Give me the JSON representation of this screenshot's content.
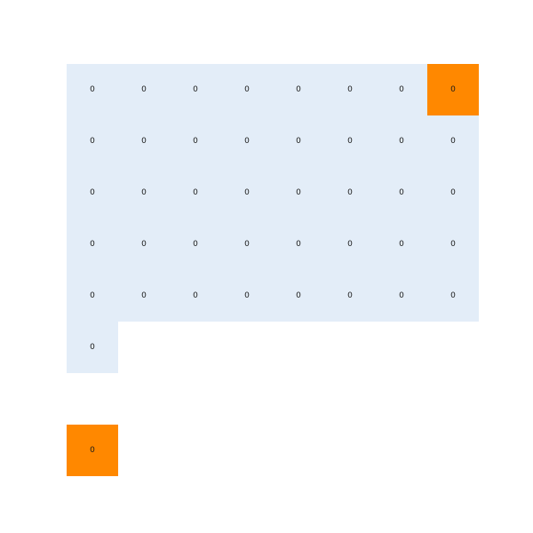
{
  "board": {
    "colors": {
      "revealed": "#e3edf8",
      "highlight": "#ff8800",
      "background": "#ffffff",
      "text": "#1a1a1a"
    },
    "cells": [
      {
        "row": 0,
        "col": 0,
        "value": "0",
        "state": "revealed"
      },
      {
        "row": 0,
        "col": 1,
        "value": "0",
        "state": "revealed"
      },
      {
        "row": 0,
        "col": 2,
        "value": "0",
        "state": "revealed"
      },
      {
        "row": 0,
        "col": 3,
        "value": "0",
        "state": "revealed"
      },
      {
        "row": 0,
        "col": 4,
        "value": "0",
        "state": "revealed"
      },
      {
        "row": 0,
        "col": 5,
        "value": "0",
        "state": "revealed"
      },
      {
        "row": 0,
        "col": 6,
        "value": "0",
        "state": "revealed"
      },
      {
        "row": 0,
        "col": 7,
        "value": "0",
        "state": "highlight"
      },
      {
        "row": 1,
        "col": 0,
        "value": "0",
        "state": "revealed"
      },
      {
        "row": 1,
        "col": 1,
        "value": "0",
        "state": "revealed"
      },
      {
        "row": 1,
        "col": 2,
        "value": "0",
        "state": "revealed"
      },
      {
        "row": 1,
        "col": 3,
        "value": "0",
        "state": "revealed"
      },
      {
        "row": 1,
        "col": 4,
        "value": "0",
        "state": "revealed"
      },
      {
        "row": 1,
        "col": 5,
        "value": "0",
        "state": "revealed"
      },
      {
        "row": 1,
        "col": 6,
        "value": "0",
        "state": "revealed"
      },
      {
        "row": 1,
        "col": 7,
        "value": "0",
        "state": "revealed"
      },
      {
        "row": 2,
        "col": 0,
        "value": "0",
        "state": "revealed"
      },
      {
        "row": 2,
        "col": 1,
        "value": "0",
        "state": "revealed"
      },
      {
        "row": 2,
        "col": 2,
        "value": "0",
        "state": "revealed"
      },
      {
        "row": 2,
        "col": 3,
        "value": "0",
        "state": "revealed"
      },
      {
        "row": 2,
        "col": 4,
        "value": "0",
        "state": "revealed"
      },
      {
        "row": 2,
        "col": 5,
        "value": "0",
        "state": "revealed"
      },
      {
        "row": 2,
        "col": 6,
        "value": "0",
        "state": "revealed"
      },
      {
        "row": 2,
        "col": 7,
        "value": "0",
        "state": "revealed"
      },
      {
        "row": 3,
        "col": 0,
        "value": "0",
        "state": "revealed"
      },
      {
        "row": 3,
        "col": 1,
        "value": "0",
        "state": "revealed"
      },
      {
        "row": 3,
        "col": 2,
        "value": "0",
        "state": "revealed"
      },
      {
        "row": 3,
        "col": 3,
        "value": "0",
        "state": "revealed"
      },
      {
        "row": 3,
        "col": 4,
        "value": "0",
        "state": "revealed"
      },
      {
        "row": 3,
        "col": 5,
        "value": "0",
        "state": "revealed"
      },
      {
        "row": 3,
        "col": 6,
        "value": "0",
        "state": "revealed"
      },
      {
        "row": 3,
        "col": 7,
        "value": "0",
        "state": "revealed"
      },
      {
        "row": 4,
        "col": 0,
        "value": "0",
        "state": "revealed"
      },
      {
        "row": 4,
        "col": 1,
        "value": "0",
        "state": "revealed"
      },
      {
        "row": 4,
        "col": 2,
        "value": "0",
        "state": "revealed"
      },
      {
        "row": 4,
        "col": 3,
        "value": "0",
        "state": "revealed"
      },
      {
        "row": 4,
        "col": 4,
        "value": "0",
        "state": "revealed"
      },
      {
        "row": 4,
        "col": 5,
        "value": "0",
        "state": "revealed"
      },
      {
        "row": 4,
        "col": 6,
        "value": "0",
        "state": "revealed"
      },
      {
        "row": 4,
        "col": 7,
        "value": "0",
        "state": "revealed"
      },
      {
        "row": 5,
        "col": 0,
        "value": "0",
        "state": "revealed"
      },
      {
        "row": 7,
        "col": 0,
        "value": "0",
        "state": "highlight"
      }
    ]
  }
}
